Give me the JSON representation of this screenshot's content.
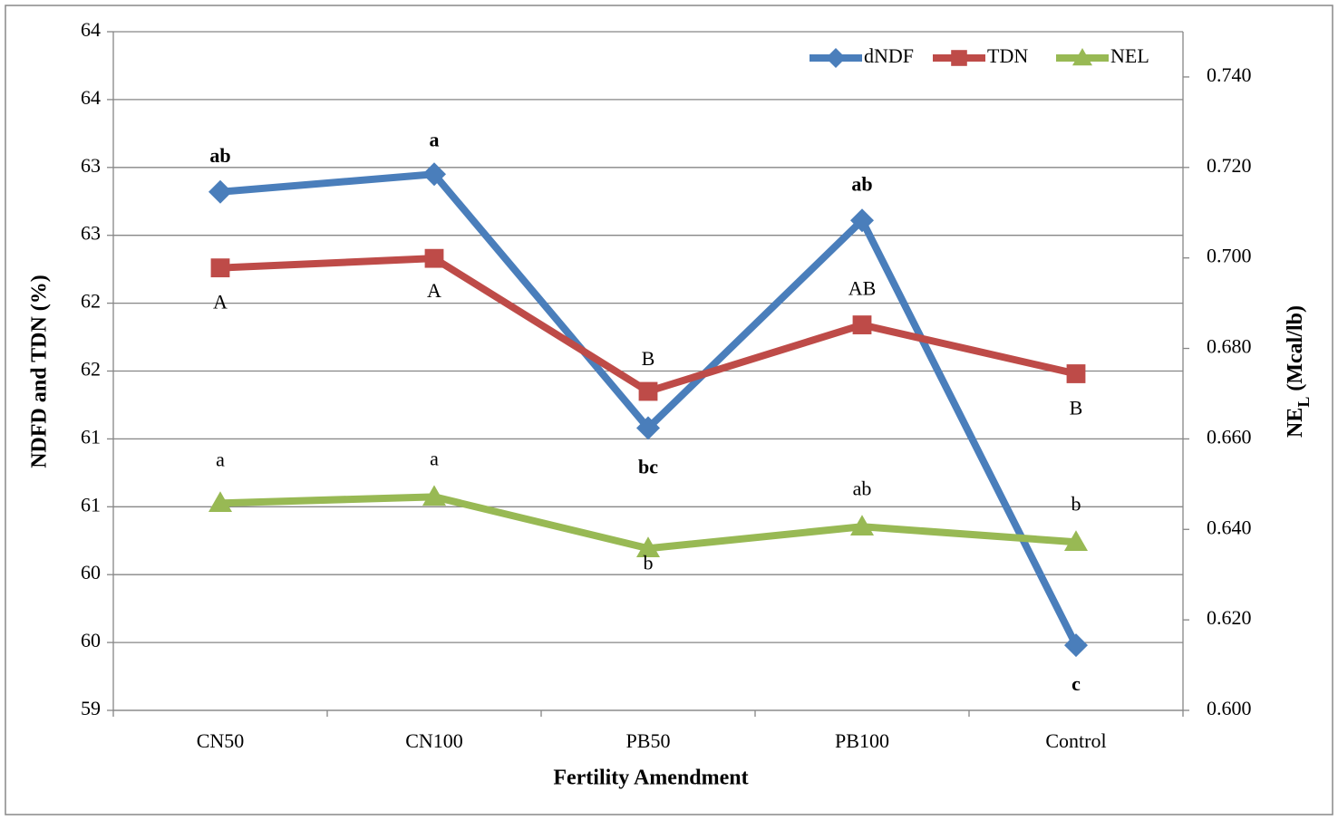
{
  "chart_data": {
    "type": "line",
    "x_label": "Fertility Amendment",
    "y_label": "NDFD and TDN (%)",
    "y2_label": {
      "main": "NE",
      "sub": "L",
      "rest": " (Mcal/lb)"
    },
    "categories": [
      "CN50",
      "CN100",
      "PB50",
      "PB100",
      "Control"
    ],
    "ylim": [
      59,
      64
    ],
    "yticks": [
      59,
      {
        "value": 59.5,
        "label": "60"
      },
      60,
      {
        "value": 60.5,
        "label": "61"
      },
      61,
      {
        "value": 61.5,
        "label": "62"
      },
      62,
      {
        "value": 62.5,
        "label": "63"
      },
      63,
      {
        "value": 63.5,
        "label": "64"
      },
      64
    ],
    "y2lim": [
      0.6,
      0.75
    ],
    "y2ticks": [
      {
        "value": 0.6,
        "label": "0.600"
      },
      {
        "value": 0.62,
        "label": "0.620"
      },
      {
        "value": 0.64,
        "label": "0.640"
      },
      {
        "value": 0.66,
        "label": "0.660"
      },
      {
        "value": 0.68,
        "label": "0.680"
      },
      {
        "value": 0.7,
        "label": "0.700"
      },
      {
        "value": 0.72,
        "label": "0.720"
      },
      {
        "value": 0.74,
        "label": "0.740"
      }
    ],
    "grid": true,
    "legend": "top-right",
    "series": [
      {
        "name": "dNDF",
        "color": "#4a7ebb",
        "marker": "diamond",
        "values": [
          62.82,
          62.95,
          61.08,
          62.61,
          59.48
        ],
        "annotations": [
          "ab",
          "a",
          "bc",
          "ab",
          "c"
        ]
      },
      {
        "name": "TDN",
        "color": "#be4b48",
        "marker": "square",
        "values": [
          62.26,
          62.33,
          61.35,
          61.84,
          61.48
        ],
        "annotations": [
          "A",
          "A",
          "B",
          "AB",
          "B"
        ]
      },
      {
        "name": "NEL",
        "color": "#98b954",
        "marker": "triangle",
        "axis": "y2",
        "values": [
          0.6458,
          0.6472,
          0.6358,
          0.6406,
          0.6372
        ],
        "annotations": [
          "a",
          "a",
          "b",
          "ab",
          "b"
        ]
      }
    ]
  }
}
